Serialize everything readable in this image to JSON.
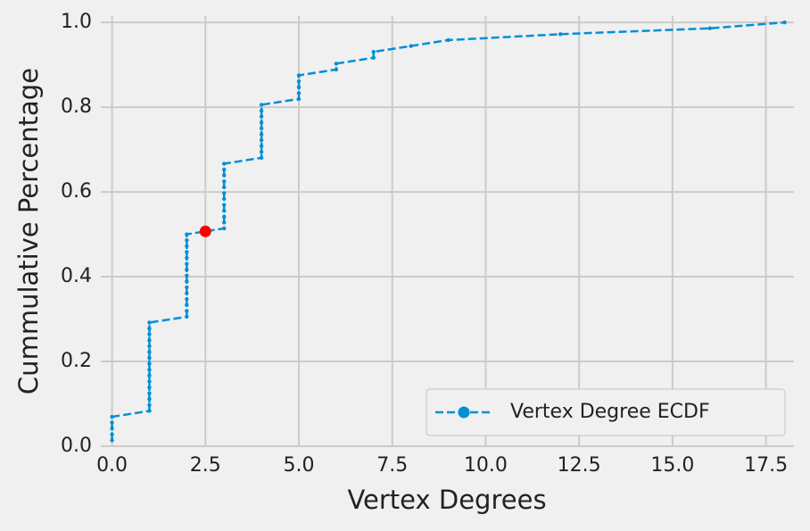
{
  "chart_data": {
    "type": "line",
    "xlabel": "Vertex Degrees",
    "ylabel": "Cummulative Percentage",
    "series": [
      {
        "name": "Vertex Degree ECDF",
        "color": "#008fd5",
        "dashed": true,
        "x": [
          0,
          0,
          0,
          0,
          0,
          1,
          1,
          1,
          1,
          1,
          1,
          1,
          1,
          1,
          1,
          1,
          1,
          1,
          1,
          1,
          1,
          2,
          2,
          2,
          2,
          2,
          2,
          2,
          2,
          2,
          2,
          2,
          2,
          2,
          2,
          2,
          3,
          3,
          3,
          3,
          3,
          3,
          3,
          3,
          3,
          3,
          3,
          3,
          4,
          4,
          4,
          4,
          4,
          4,
          4,
          4,
          4,
          4,
          5,
          5,
          5,
          5,
          5,
          6,
          6,
          7,
          7,
          8,
          9,
          12,
          16,
          18
        ],
        "values": [
          0.0139,
          0.0278,
          0.0417,
          0.0556,
          0.0694,
          0.0833,
          0.0972,
          0.1111,
          0.125,
          0.1389,
          0.1528,
          0.1667,
          0.1806,
          0.1944,
          0.2083,
          0.2222,
          0.2361,
          0.25,
          0.2639,
          0.2778,
          0.2917,
          0.3056,
          0.3194,
          0.3333,
          0.3472,
          0.3611,
          0.375,
          0.3889,
          0.4028,
          0.4167,
          0.4306,
          0.4444,
          0.4583,
          0.4722,
          0.4861,
          0.5,
          0.5139,
          0.5278,
          0.5417,
          0.5556,
          0.5694,
          0.5833,
          0.5972,
          0.6111,
          0.625,
          0.6389,
          0.6528,
          0.6667,
          0.6806,
          0.6944,
          0.7083,
          0.7222,
          0.7361,
          0.75,
          0.7639,
          0.7778,
          0.7917,
          0.8056,
          0.8194,
          0.8333,
          0.8472,
          0.8611,
          0.875,
          0.8889,
          0.9028,
          0.9167,
          0.9306,
          0.9444,
          0.9583,
          0.9722,
          0.9861,
          1
        ]
      }
    ],
    "highlight": {
      "x": 2.5,
      "y": 0.507,
      "color": "#ff0000"
    },
    "xlim": [
      -0.3,
      18.25
    ],
    "ylim": [
      0,
      1.015
    ],
    "xticks": [
      {
        "value": 0,
        "label": "0.0"
      },
      2.5,
      {
        "value": 5,
        "label": "5.0"
      },
      7.5,
      {
        "value": 10,
        "label": "10.0"
      },
      12.5,
      {
        "value": 15,
        "label": "15.0"
      },
      17.5
    ],
    "yticks": [
      {
        "value": 0,
        "label": "0.0"
      },
      0.2,
      0.4,
      0.6,
      0.8,
      {
        "value": 1,
        "label": "1.0"
      }
    ],
    "grid": true,
    "legend": "lower right"
  }
}
